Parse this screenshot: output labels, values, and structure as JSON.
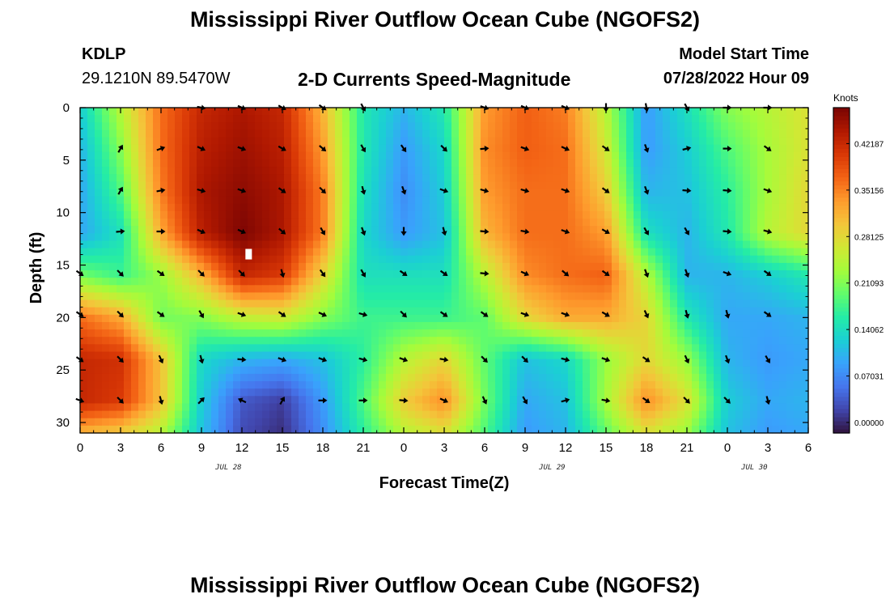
{
  "header": {
    "main_title": "Mississippi River Outflow Ocean Cube (NGOFS2)",
    "station_id": "KDLP",
    "coordinates": "29.1210N  89.5470W",
    "subtitle": "2-D Currents Speed-Magnitude",
    "model_start_label": "Model Start Time",
    "model_start_value": "07/28/2022 Hour 09"
  },
  "footer": {
    "next_title": "Mississippi River Outflow Ocean Cube (NGOFS2)"
  },
  "chart_data": {
    "type": "heatmap",
    "title": "2-D Currents Speed-Magnitude",
    "xlabel": "Forecast Time(Z)",
    "ylabel": "Depth (ft)",
    "x_tick_labels": [
      "0",
      "3",
      "6",
      "9",
      "12",
      "15",
      "18",
      "21",
      "0",
      "3",
      "6",
      "9",
      "12",
      "15",
      "18",
      "21",
      "0",
      "3",
      "6"
    ],
    "date_labels": [
      "JUL 28",
      "JUL 29",
      "JUL 30"
    ],
    "date_label_hours": [
      11,
      35,
      50
    ],
    "x_range_hours": [
      0,
      54
    ],
    "y_tick_labels": [
      "0",
      "5",
      "10",
      "15",
      "20",
      "25",
      "30"
    ],
    "y_range": [
      0,
      31
    ],
    "y_inverted": true,
    "colorbar": {
      "unit": "Knots",
      "range": [
        0,
        0.49219
      ],
      "tick_labels": [
        "0.00000",
        "0.07031",
        "0.14062",
        "0.21093",
        "0.28125",
        "0.35156",
        "0.42187"
      ],
      "colors": [
        "#30123b",
        "#4145ab",
        "#4675ed",
        "#39a2fc",
        "#1bcfd4",
        "#24eca6",
        "#61fc6c",
        "#a4fc3b",
        "#d1e834",
        "#f3c63a",
        "#fe9b2d",
        "#f36315",
        "#d93806",
        "#b11901",
        "#7a0403"
      ]
    },
    "speed_field": {
      "depth_levels_ft": [
        0,
        4,
        8,
        12,
        16,
        20,
        24,
        28,
        31
      ],
      "time_hours": [
        0,
        3,
        6,
        9,
        12,
        15,
        18,
        21,
        24,
        27,
        30,
        33,
        36,
        39,
        42,
        45,
        48,
        51,
        54
      ],
      "values_knots": [
        [
          0.14,
          0.26,
          0.38,
          0.44,
          0.46,
          0.44,
          0.33,
          0.17,
          0.12,
          0.17,
          0.35,
          0.39,
          0.37,
          0.26,
          0.1,
          0.16,
          0.23,
          0.26,
          0.29
        ],
        [
          0.12,
          0.23,
          0.38,
          0.45,
          0.47,
          0.45,
          0.35,
          0.17,
          0.1,
          0.15,
          0.36,
          0.39,
          0.38,
          0.28,
          0.1,
          0.14,
          0.2,
          0.25,
          0.29
        ],
        [
          0.11,
          0.2,
          0.37,
          0.46,
          0.48,
          0.46,
          0.37,
          0.16,
          0.09,
          0.14,
          0.35,
          0.38,
          0.38,
          0.31,
          0.12,
          0.13,
          0.18,
          0.25,
          0.3
        ],
        [
          0.11,
          0.16,
          0.34,
          0.45,
          0.49,
          0.46,
          0.37,
          0.15,
          0.1,
          0.13,
          0.33,
          0.38,
          0.38,
          0.35,
          0.16,
          0.12,
          0.17,
          0.26,
          0.3
        ],
        [
          0.22,
          0.19,
          0.24,
          0.33,
          0.44,
          0.42,
          0.3,
          0.16,
          0.16,
          0.16,
          0.26,
          0.36,
          0.38,
          0.39,
          0.26,
          0.12,
          0.12,
          0.14,
          0.17
        ],
        [
          0.38,
          0.34,
          0.22,
          0.23,
          0.27,
          0.28,
          0.23,
          0.19,
          0.19,
          0.19,
          0.21,
          0.3,
          0.34,
          0.34,
          0.3,
          0.17,
          0.11,
          0.11,
          0.12
        ],
        [
          0.44,
          0.43,
          0.32,
          0.15,
          0.12,
          0.11,
          0.13,
          0.18,
          0.26,
          0.3,
          0.21,
          0.13,
          0.15,
          0.24,
          0.3,
          0.24,
          0.12,
          0.1,
          0.11
        ],
        [
          0.44,
          0.42,
          0.32,
          0.14,
          0.05,
          0.03,
          0.1,
          0.2,
          0.31,
          0.36,
          0.22,
          0.11,
          0.13,
          0.25,
          0.36,
          0.29,
          0.14,
          0.11,
          0.12
        ],
        [
          0.33,
          0.31,
          0.26,
          0.13,
          0.04,
          0.02,
          0.09,
          0.18,
          0.26,
          0.29,
          0.2,
          0.1,
          0.12,
          0.21,
          0.29,
          0.24,
          0.13,
          0.1,
          0.11
        ]
      ]
    },
    "vectors": {
      "depths_ft": [
        0,
        3.9,
        7.9,
        11.8,
        15.8,
        19.7,
        24,
        27.9
      ],
      "time_hours": [
        0,
        3,
        6,
        9,
        12,
        15,
        18,
        21,
        24,
        27,
        30,
        33,
        36,
        39,
        42,
        45,
        48,
        51
      ],
      "direction_deg_compass": [
        [
          null,
          null,
          null,
          100,
          115,
          120,
          125,
          150,
          null,
          null,
          110,
          115,
          115,
          180,
          170,
          150,
          90,
          90
        ],
        [
          null,
          30,
          70,
          115,
          110,
          120,
          130,
          150,
          145,
          135,
          85,
          110,
          115,
          125,
          160,
          75,
          90,
          125
        ],
        [
          null,
          30,
          80,
          105,
          110,
          125,
          135,
          165,
          160,
          110,
          105,
          105,
          110,
          125,
          160,
          95,
          95,
          110
        ],
        [
          null,
          85,
          90,
          115,
          115,
          130,
          150,
          160,
          180,
          165,
          95,
          100,
          110,
          120,
          150,
          150,
          95,
          105
        ],
        [
          125,
          135,
          125,
          135,
          135,
          165,
          145,
          150,
          125,
          125,
          95,
          115,
          130,
          125,
          160,
          160,
          110,
          125
        ],
        [
          125,
          135,
          125,
          150,
          110,
          125,
          115,
          105,
          135,
          125,
          125,
          110,
          110,
          120,
          155,
          165,
          165,
          125
        ],
        [
          125,
          135,
          155,
          165,
          95,
          110,
          110,
          105,
          110,
          100,
          135,
          135,
          105,
          110,
          125,
          155,
          160,
          150
        ],
        [
          110,
          135,
          165,
          45,
          295,
          30,
          90,
          90,
          95,
          115,
          155,
          150,
          75,
          100,
          125,
          135,
          135,
          165
        ]
      ]
    },
    "missing_value_marker": {
      "time_hours": 12.5,
      "depth_ft": 14
    }
  }
}
